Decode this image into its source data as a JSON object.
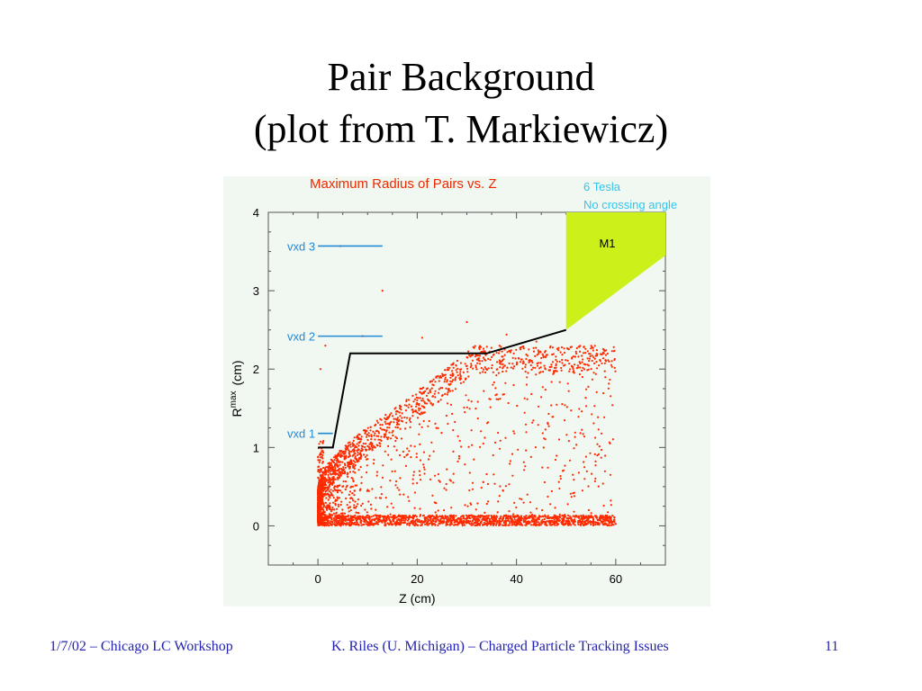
{
  "slide": {
    "title_line1": "Pair Background",
    "title_line2": "(plot from T. Markiewicz)"
  },
  "footer": {
    "left": "1/7/02 – Chicago LC Workshop",
    "center": "K. Riles (U. Michigan) – Charged Particle Tracking Issues",
    "page": "11"
  },
  "colors": {
    "points": "#ff2a00",
    "title": "#ee2a00",
    "annotation": "#33c6ee",
    "vxd": "#1f8ad8",
    "m1_fill": "#ccf019",
    "envelope": "#000000",
    "axis": "#555555"
  },
  "chart_data": {
    "type": "scatter",
    "title": "Maximum Radius of Pairs vs. Z",
    "annotations": [
      "6 Tesla",
      "No crossing angle"
    ],
    "xlabel": "Z (cm)",
    "ylabel": {
      "base": "R",
      "superscript": "max",
      "unit": "(cm)"
    },
    "xlim": [
      -10,
      70
    ],
    "ylim": [
      -0.5,
      4
    ],
    "xticks": [
      0,
      20,
      40,
      60
    ],
    "yticks": [
      0,
      1,
      2,
      3,
      4
    ],
    "vxd_layers": [
      {
        "label": "vxd 3",
        "r": 3.57,
        "z": [
          0,
          13
        ]
      },
      {
        "label": "vxd 2",
        "r": 2.42,
        "z": [
          0,
          13
        ]
      },
      {
        "label": "vxd 1",
        "r": 1.18,
        "z": [
          0,
          3
        ]
      }
    ],
    "envelope": [
      [
        0,
        1.0
      ],
      [
        3,
        1.0
      ],
      [
        6.5,
        2.2
      ],
      [
        34,
        2.2
      ],
      [
        50,
        2.5
      ]
    ],
    "m1_region": {
      "label": "M1",
      "polygon": [
        [
          50,
          2.5
        ],
        [
          50,
          4.0
        ],
        [
          70,
          4.0
        ],
        [
          70,
          3.45
        ]
      ]
    },
    "scatter_bands": [
      {
        "description": "low-radius band",
        "z_range": [
          0,
          60
        ],
        "r_range": [
          0,
          0.15
        ]
      },
      {
        "description": "dense upper edge",
        "z_range": [
          0,
          60
        ],
        "r_edge": "1.1 * sqrt(z)^0.43, rising from ~0.5 at z=0 to ~2.3 at z=60"
      },
      {
        "description": "sparse interior",
        "z_range": [
          0,
          60
        ],
        "r_range": [
          0,
          2.3
        ]
      }
    ],
    "outliers": [
      [
        13,
        3.0
      ],
      [
        30,
        2.6
      ],
      [
        21,
        2.4
      ],
      [
        44,
        2.35
      ],
      [
        4.5,
        3.57
      ],
      [
        9,
        2.42
      ],
      [
        38,
        2.44
      ],
      [
        0.5,
        2.0
      ],
      [
        1.5,
        2.3
      ]
    ]
  }
}
